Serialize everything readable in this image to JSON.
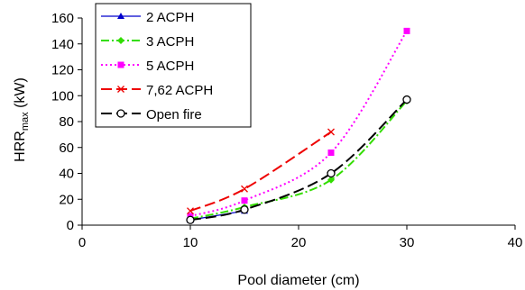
{
  "chart_data": {
    "type": "line",
    "title": "",
    "xlabel": "Pool diameter  (cm)",
    "ylabel_main": "HRR",
    "ylabel_sub": "max",
    "ylabel_unit": " (kW)",
    "xlim": [
      0,
      40
    ],
    "ylim": [
      0,
      160
    ],
    "xticks": [
      0,
      10,
      20,
      30,
      40
    ],
    "yticks": [
      0,
      20,
      40,
      60,
      80,
      100,
      120,
      140,
      160
    ],
    "grid": false,
    "legend_position": "top-left",
    "series": [
      {
        "name": "2 ACPH",
        "color": "#0000cc",
        "dash": "solid",
        "marker": "triangle",
        "x": [
          10,
          15
        ],
        "y": [
          4,
          11
        ]
      },
      {
        "name": "3  ACPH",
        "color": "#33dd00",
        "dash": "dash-dot",
        "marker": "diamond",
        "x": [
          10,
          15,
          23,
          30
        ],
        "y": [
          5,
          14,
          35,
          96
        ]
      },
      {
        "name": "5 ACPH",
        "color": "#ff00ff",
        "dash": "dot",
        "marker": "square",
        "x": [
          10,
          15,
          23,
          30
        ],
        "y": [
          7,
          19,
          56,
          150
        ]
      },
      {
        "name": "7,62 ACPH",
        "color": "#ee0000",
        "dash": "long-dash",
        "marker": "x",
        "x": [
          10,
          15,
          23
        ],
        "y": [
          11,
          28,
          72
        ]
      },
      {
        "name": "Open fire",
        "color": "#000000",
        "dash": "long-dash",
        "marker": "circle",
        "x": [
          10,
          15,
          23,
          30
        ],
        "y": [
          4,
          12,
          40,
          97
        ]
      }
    ]
  }
}
